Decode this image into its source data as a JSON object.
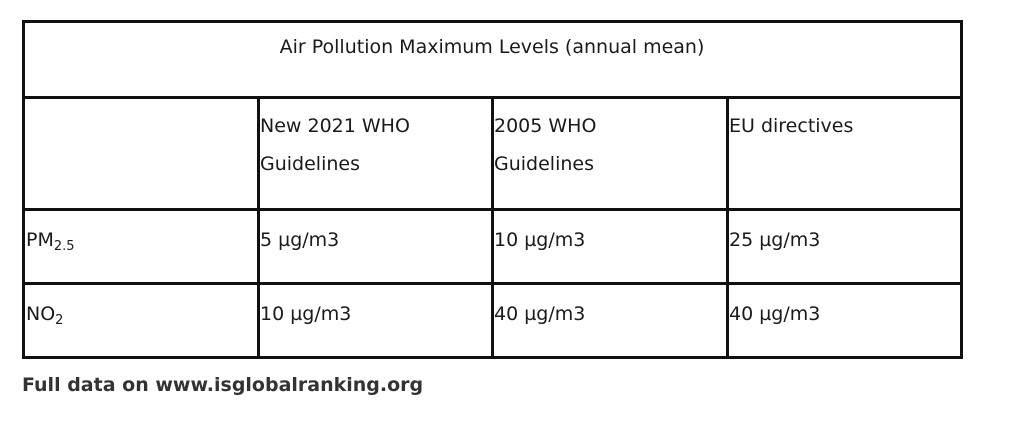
{
  "table": {
    "title": "Air Pollution Maximum Levels (annual mean)",
    "header": [
      "New 2021 WHO Guidelines",
      "2005 WHO Guidelines",
      "EU directives"
    ],
    "rows": [
      {
        "label": "PM",
        "label_sub": "2.5",
        "cells": [
          "5 µg/m3",
          "10 µg/m3",
          "25 µg/m3"
        ]
      },
      {
        "label": "NO",
        "label_sub": "2",
        "cells": [
          "10 µg/m3",
          "40 µg/m3",
          "40 µg/m3"
        ]
      }
    ]
  },
  "footer": "Full data on www.isglobalranking.org"
}
